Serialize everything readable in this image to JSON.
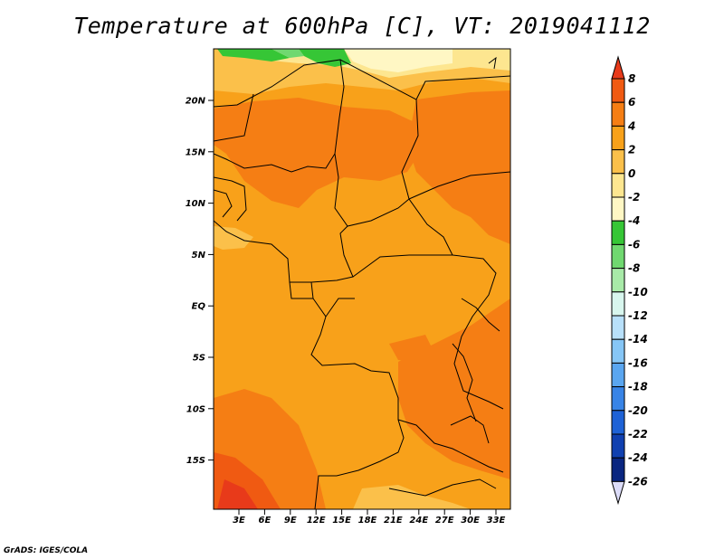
{
  "title": "Temperature at 600hPa [C], VT: 2019041112",
  "credit": "GrADS: IGES/COLA",
  "map": {
    "lat_ticks": [
      "20N",
      "15N",
      "10N",
      "5N",
      "EQ",
      "5S",
      "10S",
      "15S"
    ],
    "lon_ticks": [
      "3E",
      "6E",
      "9E",
      "12E",
      "15E",
      "18E",
      "21E",
      "24E",
      "27E",
      "30E",
      "33E"
    ]
  },
  "colorbar": {
    "labels": [
      "8",
      "6",
      "4",
      "2",
      "0",
      "-2",
      "-4",
      "-6",
      "-8",
      "-10",
      "-12",
      "-14",
      "-16",
      "-18",
      "-20",
      "-22",
      "-24",
      "-26"
    ],
    "colors": [
      "#e83a1a",
      "#f05a12",
      "#f57e14",
      "#f8a11a",
      "#fbc04a",
      "#fde690",
      "#fff7c4",
      "#36c636",
      "#70d870",
      "#a8eaa8",
      "#d8f6ee",
      "#b8e0fa",
      "#86c6f6",
      "#5aa6f0",
      "#3884e6",
      "#1e62d6",
      "#1040b0",
      "#0a2680",
      "#081460",
      "#dcdcf8"
    ]
  }
}
